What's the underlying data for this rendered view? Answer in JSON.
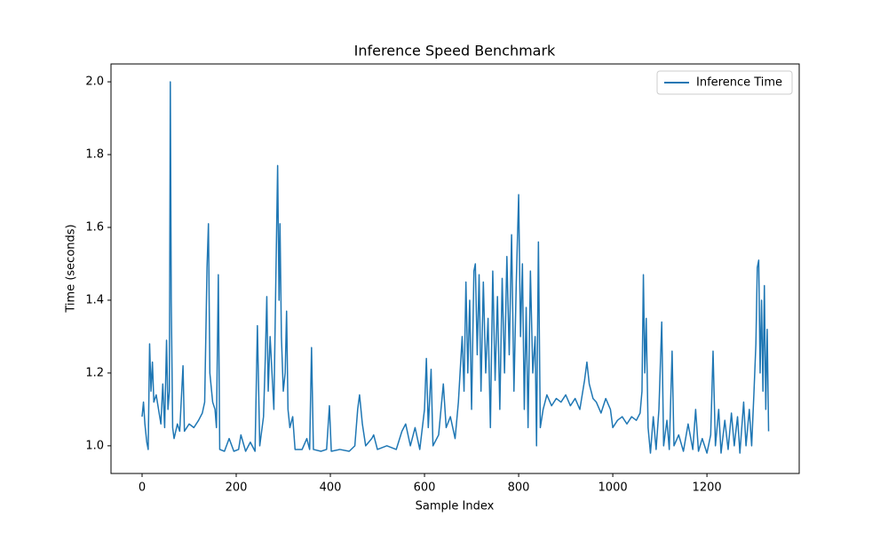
{
  "chart_data": {
    "type": "line",
    "title": "Inference Speed Benchmark",
    "x_label": "Sample Index",
    "y_label": "Time (seconds)",
    "legend": "upper right",
    "xlim": [
      -66,
      1396
    ],
    "ylim": [
      0.924,
      2.049
    ],
    "xticks": [
      0,
      200,
      400,
      600,
      800,
      1000,
      1200
    ],
    "yticks": [
      {
        "value": 1.0,
        "label": "1.0"
      },
      1.2,
      1.4,
      1.6,
      1.8,
      {
        "value": 2.0,
        "label": "2.0"
      }
    ],
    "x": [
      0,
      3,
      6,
      10,
      13,
      16,
      19,
      22,
      25,
      30,
      35,
      40,
      44,
      48,
      52,
      55,
      58,
      60,
      62,
      65,
      68,
      75,
      80,
      87,
      90,
      100,
      110,
      120,
      128,
      133,
      138,
      141,
      144,
      150,
      155,
      158,
      162,
      165,
      175,
      185,
      195,
      205,
      210,
      220,
      230,
      240,
      245,
      250,
      258,
      262,
      265,
      268,
      272,
      276,
      280,
      284,
      288,
      291,
      293,
      296,
      300,
      304,
      307,
      310,
      314,
      320,
      325,
      340,
      350,
      356,
      360,
      364,
      380,
      392,
      398,
      402,
      420,
      440,
      452,
      458,
      462,
      468,
      475,
      488,
      492,
      500,
      520,
      540,
      552,
      560,
      570,
      580,
      590,
      600,
      604,
      608,
      614,
      618,
      630,
      640,
      646,
      655,
      665,
      672,
      680,
      684,
      688,
      692,
      696,
      700,
      705,
      708,
      712,
      716,
      720,
      725,
      730,
      735,
      740,
      745,
      750,
      755,
      760,
      765,
      770,
      775,
      780,
      785,
      790,
      795,
      800,
      804,
      808,
      812,
      816,
      820,
      825,
      830,
      835,
      838,
      842,
      846,
      852,
      860,
      870,
      880,
      890,
      900,
      910,
      920,
      930,
      940,
      945,
      950,
      958,
      965,
      975,
      985,
      995,
      1000,
      1010,
      1020,
      1030,
      1040,
      1050,
      1058,
      1062,
      1065,
      1068,
      1071,
      1075,
      1080,
      1086,
      1092,
      1098,
      1104,
      1108,
      1115,
      1120,
      1126,
      1130,
      1140,
      1150,
      1160,
      1170,
      1176,
      1182,
      1190,
      1200,
      1208,
      1213,
      1218,
      1225,
      1230,
      1238,
      1245,
      1252,
      1258,
      1265,
      1270,
      1278,
      1283,
      1290,
      1295,
      1300,
      1304,
      1307,
      1310,
      1313,
      1316,
      1319,
      1322,
      1325,
      1328,
      1331
    ],
    "series": [
      {
        "name": "Inference Time",
        "color": "#1f77b4",
        "values": [
          1.08,
          1.12,
          1.06,
          1.01,
          0.99,
          1.28,
          1.15,
          1.23,
          1.12,
          1.14,
          1.1,
          1.06,
          1.17,
          1.05,
          1.29,
          1.1,
          1.15,
          2.0,
          1.4,
          1.05,
          1.02,
          1.06,
          1.04,
          1.22,
          1.04,
          1.06,
          1.05,
          1.07,
          1.09,
          1.12,
          1.49,
          1.61,
          1.2,
          1.12,
          1.1,
          1.05,
          1.47,
          0.99,
          0.985,
          1.02,
          0.985,
          0.99,
          1.03,
          0.985,
          1.01,
          0.985,
          1.33,
          1.0,
          1.08,
          1.25,
          1.41,
          1.15,
          1.3,
          1.2,
          1.1,
          1.44,
          1.77,
          1.4,
          1.61,
          1.3,
          1.15,
          1.2,
          1.37,
          1.1,
          1.05,
          1.08,
          0.99,
          0.99,
          1.02,
          0.99,
          1.27,
          0.99,
          0.985,
          0.99,
          1.11,
          0.985,
          0.99,
          0.985,
          1.0,
          1.1,
          1.14,
          1.06,
          1.0,
          1.02,
          1.03,
          0.99,
          1.0,
          0.99,
          1.04,
          1.06,
          1.0,
          1.05,
          0.99,
          1.1,
          1.24,
          1.05,
          1.21,
          1.0,
          1.03,
          1.17,
          1.05,
          1.08,
          1.02,
          1.12,
          1.3,
          1.15,
          1.45,
          1.2,
          1.4,
          1.1,
          1.48,
          1.5,
          1.25,
          1.47,
          1.15,
          1.45,
          1.2,
          1.35,
          1.05,
          1.48,
          1.18,
          1.41,
          1.1,
          1.46,
          1.2,
          1.52,
          1.25,
          1.58,
          1.15,
          1.45,
          1.69,
          1.3,
          1.5,
          1.1,
          1.38,
          1.05,
          1.48,
          1.2,
          1.3,
          1.0,
          1.56,
          1.05,
          1.1,
          1.14,
          1.11,
          1.13,
          1.12,
          1.14,
          1.11,
          1.13,
          1.1,
          1.18,
          1.23,
          1.17,
          1.13,
          1.12,
          1.09,
          1.13,
          1.1,
          1.05,
          1.07,
          1.08,
          1.06,
          1.08,
          1.07,
          1.09,
          1.15,
          1.47,
          1.2,
          1.35,
          1.05,
          0.98,
          1.08,
          0.99,
          1.1,
          1.34,
          1.0,
          1.07,
          0.99,
          1.26,
          1.0,
          1.03,
          0.985,
          1.06,
          0.99,
          1.1,
          0.985,
          1.02,
          0.98,
          1.03,
          1.26,
          1.0,
          1.1,
          0.98,
          1.07,
          0.99,
          1.09,
          1.0,
          1.08,
          0.98,
          1.12,
          1.0,
          1.1,
          1.0,
          1.15,
          1.28,
          1.49,
          1.51,
          1.2,
          1.4,
          1.15,
          1.44,
          1.1,
          1.32,
          1.04
        ]
      }
    ]
  }
}
